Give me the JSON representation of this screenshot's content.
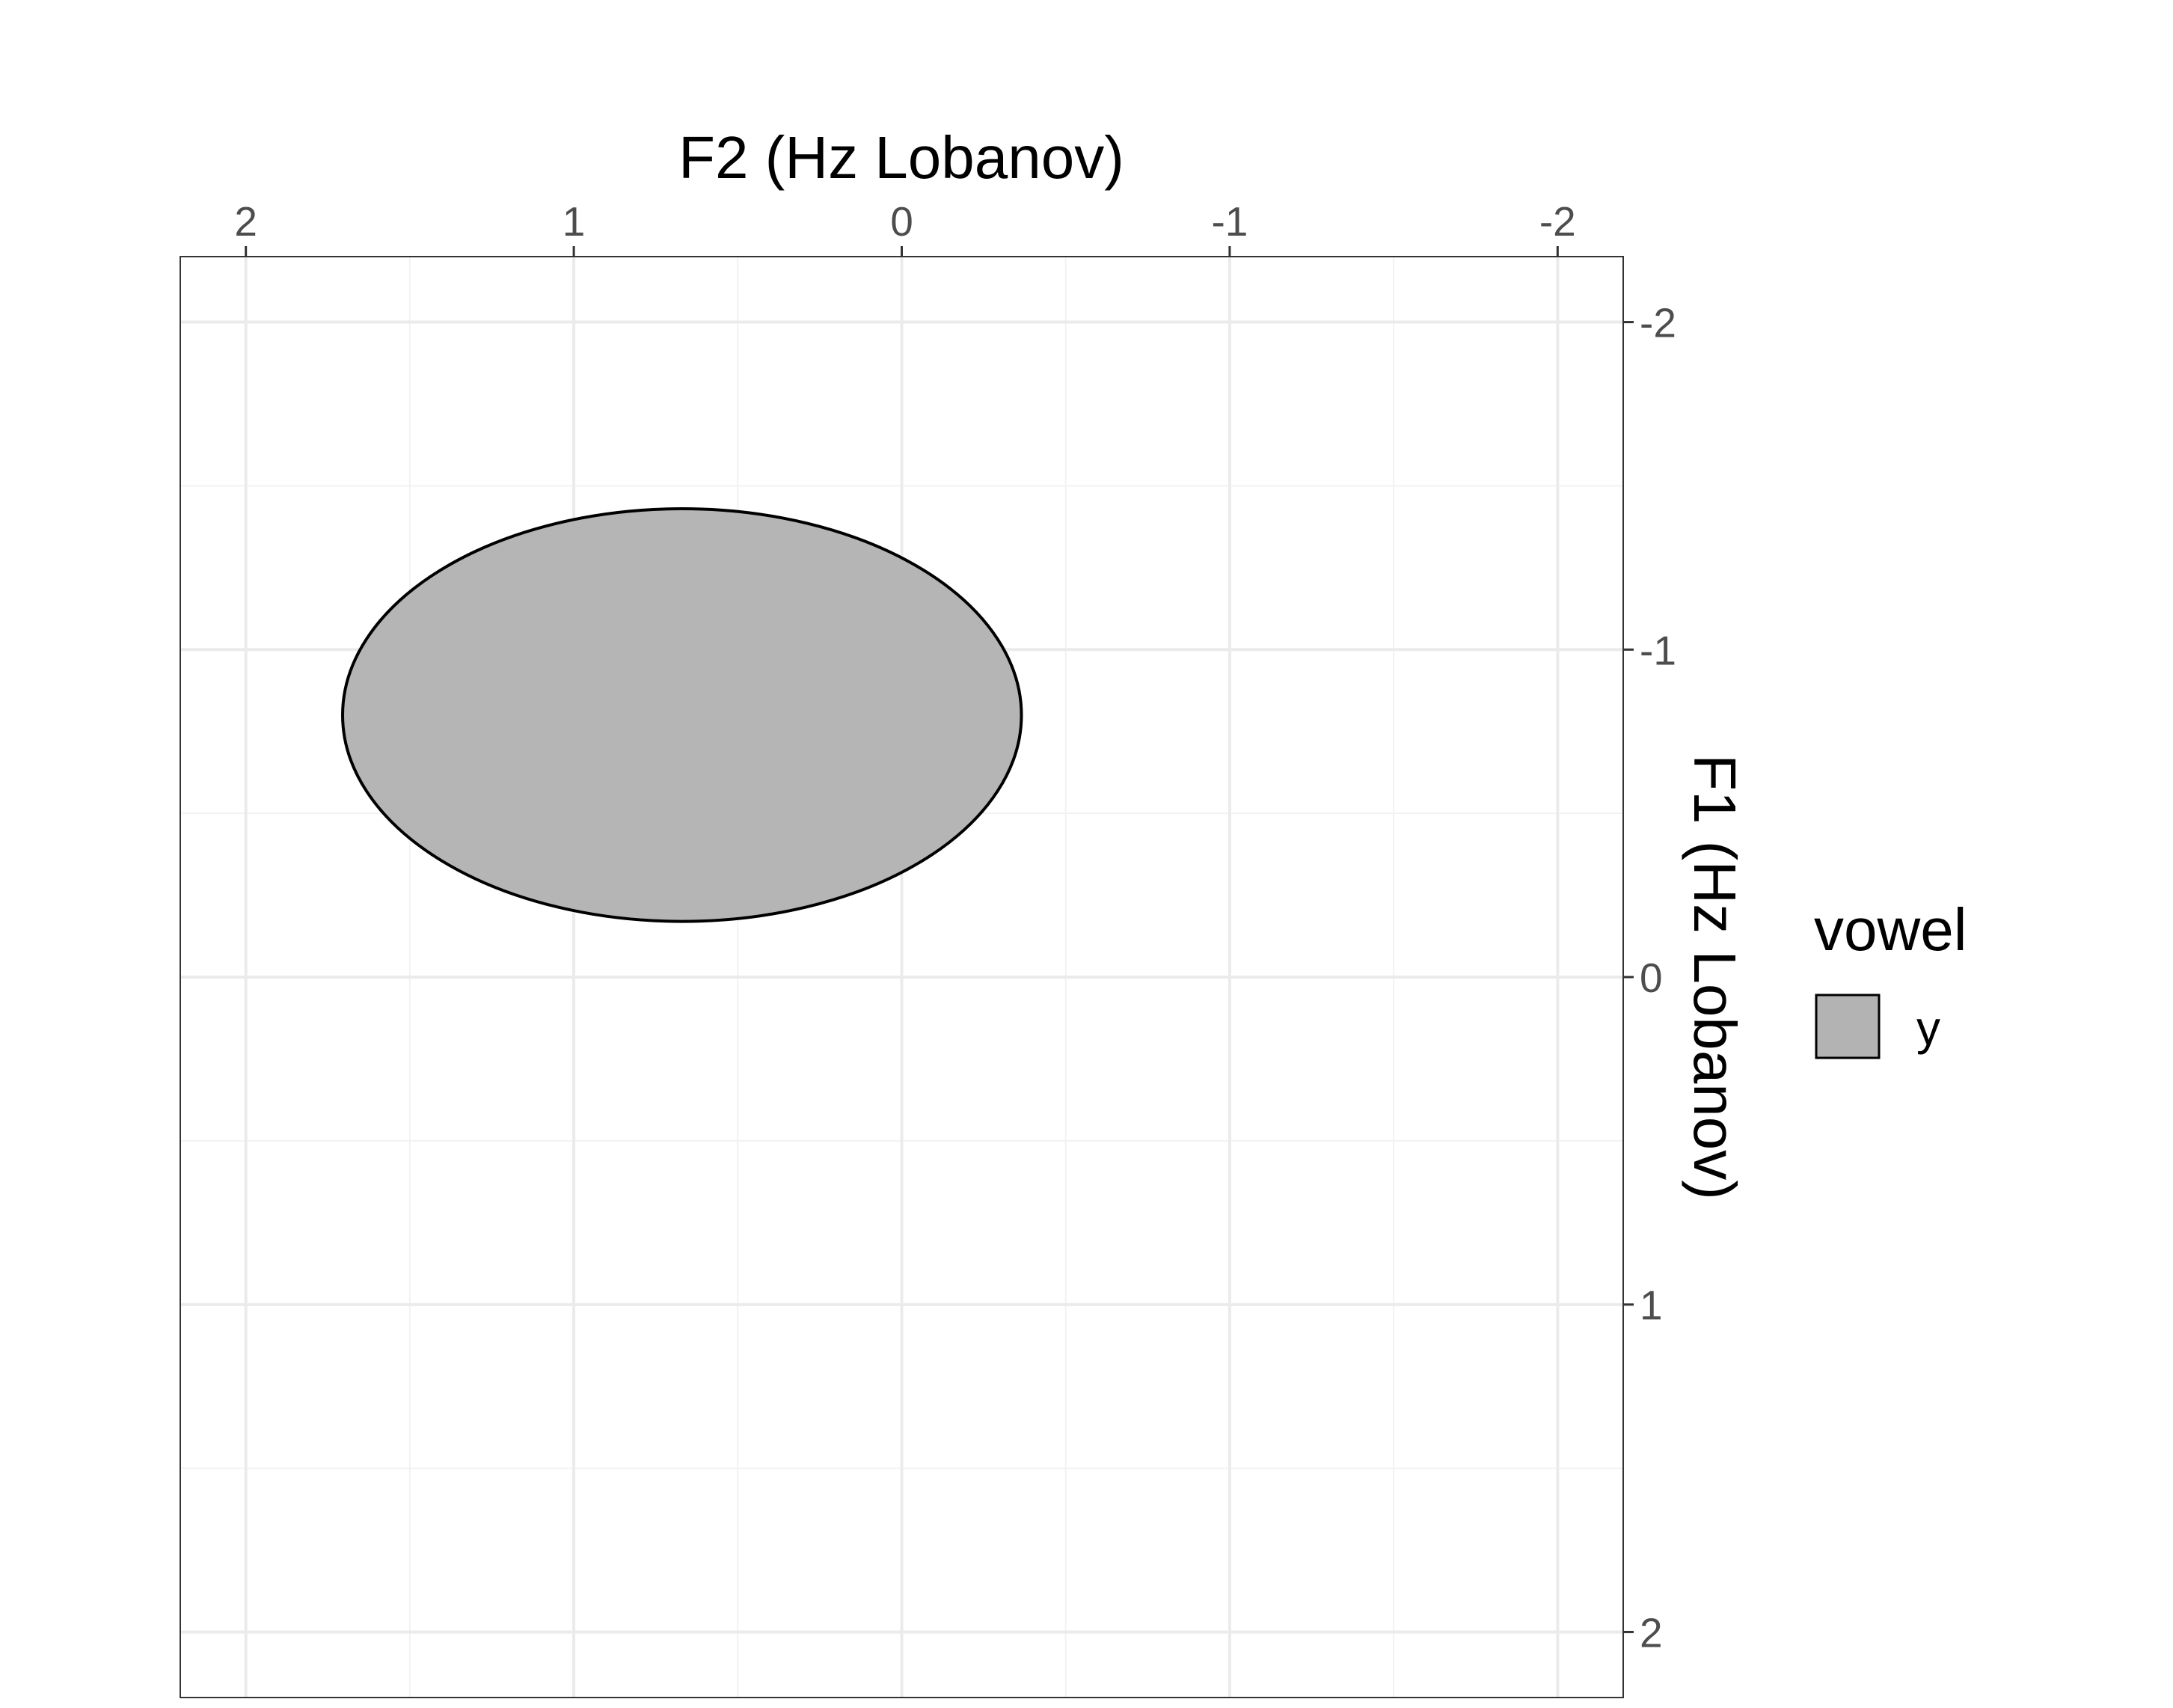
{
  "chart_data": {
    "type": "ellipse",
    "xlabel": "F2 (Hz Lobanov)",
    "ylabel": "F1 (Hz Lobanov)",
    "x_axis": {
      "position": "top",
      "reversed": true,
      "lim": [
        2.2,
        -2.2
      ],
      "ticks": [
        2,
        1,
        0,
        -1,
        -2
      ],
      "tick_labels": [
        "2",
        "1",
        "0",
        "-1",
        "-2"
      ]
    },
    "y_axis": {
      "position": "right",
      "reversed": true,
      "lim": [
        -2.2,
        2.2
      ],
      "ticks": [
        -2,
        -1,
        0,
        1,
        2
      ],
      "tick_labels": [
        "-2",
        "-1",
        "0",
        "1",
        "2"
      ]
    },
    "grid": true,
    "legend": {
      "title": "vowel",
      "placement": "right",
      "entries": [
        {
          "label": "y",
          "color": "#b3b3b3"
        }
      ]
    },
    "series": [
      {
        "name": "y",
        "center": {
          "x": 0.67,
          "y": -0.8
        },
        "x_range": [
          -0.37,
          1.7
        ],
        "y_range": [
          -1.43,
          -0.17
        ],
        "fill": "#b3b3b3",
        "stroke": "#000000"
      }
    ]
  }
}
